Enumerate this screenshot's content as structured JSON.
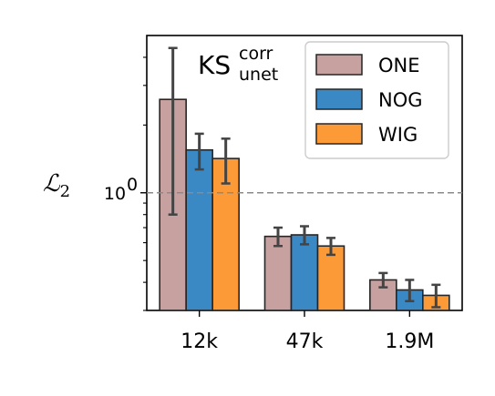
{
  "chart_data": {
    "type": "bar",
    "categories": [
      "12k",
      "47k",
      "1.9M"
    ],
    "series": [
      {
        "name": "ONE",
        "color": "#c7a0a0",
        "values": [
          2.6,
          0.64,
          0.41
        ],
        "err": [
          1.8,
          0.06,
          0.03
        ]
      },
      {
        "name": "NOG",
        "color": "#3a88c4",
        "values": [
          1.55,
          0.65,
          0.37
        ],
        "err": [
          0.28,
          0.06,
          0.04
        ]
      },
      {
        "name": "WIG",
        "color": "#fb9a37",
        "values": [
          1.42,
          0.58,
          0.35
        ],
        "err": [
          0.32,
          0.05,
          0.04
        ]
      }
    ],
    "yscale": "log",
    "ylim": [
      0.3,
      5.0
    ],
    "yticks": [
      {
        "value": 1.0,
        "label": "10"
      }
    ],
    "ytick_exponent": "0",
    "reference_line": 1.0,
    "ylabel": "ℒ",
    "ylabel_sub": "2",
    "annotation": {
      "main": "KS",
      "sup": "corr",
      "sub": "unet"
    },
    "legend": {
      "placement": "top-right"
    },
    "grid": false
  }
}
